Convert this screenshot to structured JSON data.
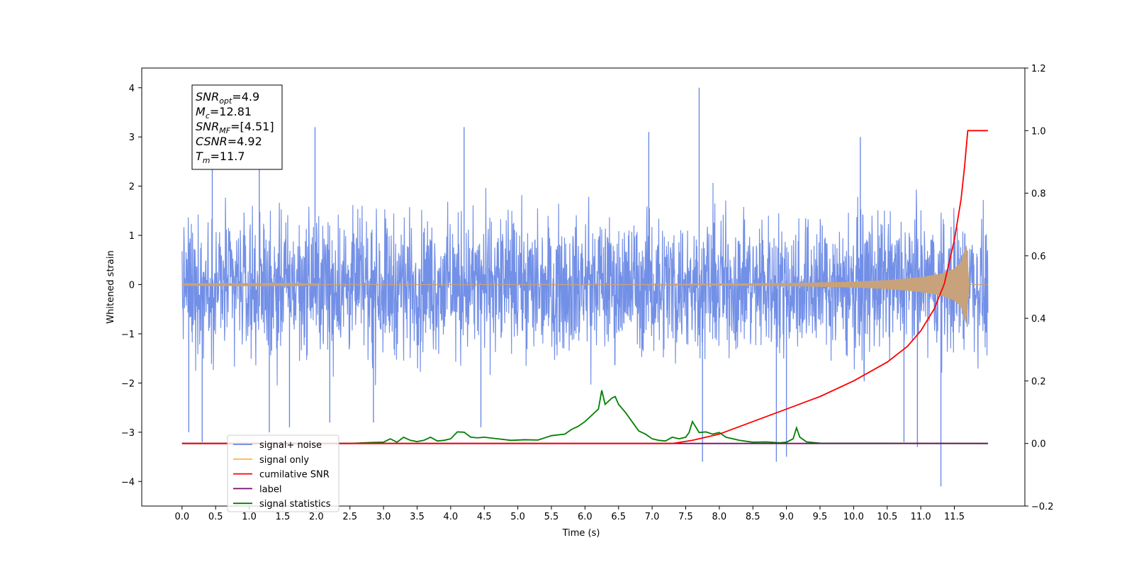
{
  "chart_data": {
    "type": "line",
    "xlabel": "Time (s)",
    "ylabel": "Whitened strain",
    "xlim": [
      -0.6,
      12.55
    ],
    "ylim": [
      -4.5,
      4.4
    ],
    "y2lim": [
      -0.2,
      1.2
    ],
    "xticks": [
      "0.0",
      "0.5",
      "1.0",
      "1.5",
      "2.0",
      "2.5",
      "3.0",
      "3.5",
      "4.0",
      "4.5",
      "5.0",
      "5.5",
      "6.0",
      "6.5",
      "7.0",
      "7.5",
      "8.0",
      "8.5",
      "9.0",
      "9.5",
      "10.0",
      "10.5",
      "11.0",
      "11.5"
    ],
    "yticks": [
      "4",
      "3",
      "2",
      "1",
      "0",
      "−1",
      "−2",
      "−3",
      "−4"
    ],
    "y2ticks": [
      "1.2",
      "1.0",
      "0.8",
      "0.6",
      "0.4",
      "0.2",
      "0.0",
      "−0.2"
    ],
    "annotation": {
      "lines": [
        {
          "base": "SNR",
          "sub": "opt",
          "rest": "=4.9"
        },
        {
          "base": "M",
          "sub": "c",
          "rest": "=12.81"
        },
        {
          "base": "SNR",
          "sub": "MF",
          "rest": "=[4.51]"
        },
        {
          "base": "CSNR",
          "sub": "",
          "rest": "=4.92"
        },
        {
          "base": "T",
          "sub": "m",
          "rest": "=11.7"
        }
      ]
    },
    "legend": {
      "position": "lower-left",
      "entries": [
        {
          "label": "signal+ noise",
          "color": "#6b8ae6"
        },
        {
          "label": "signal only",
          "color": "#ffb84d"
        },
        {
          "label": "cumilative SNR",
          "color": "#ff0000"
        },
        {
          "label": "label",
          "color": "#7a0a6e"
        },
        {
          "label": "signal statistics",
          "color": "#008000"
        }
      ]
    },
    "series": [
      {
        "name": "signal+ noise",
        "axis": "left",
        "color": "#6b8ae6",
        "x_range": [
          0.0,
          12.0
        ],
        "envelope": 1.6,
        "spikes": [
          {
            "x": 0.1,
            "y": -3.0
          },
          {
            "x": 0.3,
            "y": -3.2
          },
          {
            "x": 0.45,
            "y": 2.6
          },
          {
            "x": 1.15,
            "y": 2.8
          },
          {
            "x": 1.3,
            "y": -3.0
          },
          {
            "x": 1.6,
            "y": -2.9
          },
          {
            "x": 1.98,
            "y": 3.2
          },
          {
            "x": 2.2,
            "y": -2.8
          },
          {
            "x": 2.85,
            "y": -2.8
          },
          {
            "x": 4.2,
            "y": 3.2
          },
          {
            "x": 4.45,
            "y": -2.9
          },
          {
            "x": 6.95,
            "y": 3.1
          },
          {
            "x": 7.7,
            "y": 4.0
          },
          {
            "x": 7.75,
            "y": -3.6
          },
          {
            "x": 8.85,
            "y": -3.6
          },
          {
            "x": 9.0,
            "y": -3.5
          },
          {
            "x": 10.1,
            "y": 3.0
          },
          {
            "x": 10.75,
            "y": -3.2
          },
          {
            "x": 10.95,
            "y": -3.3
          },
          {
            "x": 11.3,
            "y": -4.1
          }
        ]
      },
      {
        "name": "signal only",
        "axis": "left",
        "color": "#c8a27a",
        "envelope_x": [
          0.0,
          7.0,
          8.0,
          9.0,
          10.0,
          10.5,
          11.0,
          11.3,
          11.5,
          11.6,
          11.68,
          11.72,
          11.8,
          12.0
        ],
        "envelope_y": [
          0.005,
          0.01,
          0.02,
          0.03,
          0.06,
          0.09,
          0.15,
          0.22,
          0.32,
          0.45,
          0.8,
          0.0,
          0.0,
          0.0
        ]
      },
      {
        "name": "cumilative SNR",
        "axis": "right",
        "color": "#ff0000",
        "x": [
          0.0,
          7.3,
          7.6,
          8.0,
          8.5,
          9.0,
          9.5,
          10.0,
          10.5,
          10.8,
          11.0,
          11.2,
          11.35,
          11.5,
          11.6,
          11.65,
          11.7,
          12.0
        ],
        "y": [
          0.0,
          0.0,
          0.01,
          0.03,
          0.07,
          0.11,
          0.15,
          0.2,
          0.26,
          0.31,
          0.36,
          0.43,
          0.51,
          0.65,
          0.78,
          0.88,
          1.0,
          1.0
        ]
      },
      {
        "name": "label",
        "axis": "right",
        "color": "#7a0a6e",
        "x": [
          0.0,
          12.0
        ],
        "y": [
          0.0,
          0.0
        ]
      },
      {
        "name": "signal statistics",
        "axis": "right",
        "color": "#008000",
        "x": [
          0.0,
          2.5,
          2.8,
          3.0,
          3.1,
          3.2,
          3.3,
          3.4,
          3.5,
          3.6,
          3.7,
          3.8,
          3.9,
          4.0,
          4.1,
          4.2,
          4.3,
          4.4,
          4.5,
          4.7,
          4.9,
          5.1,
          5.3,
          5.5,
          5.7,
          5.8,
          5.9,
          6.0,
          6.1,
          6.2,
          6.25,
          6.3,
          6.4,
          6.45,
          6.5,
          6.6,
          6.7,
          6.8,
          6.9,
          7.0,
          7.1,
          7.2,
          7.3,
          7.4,
          7.5,
          7.55,
          7.6,
          7.7,
          7.8,
          7.9,
          8.0,
          8.1,
          8.3,
          8.5,
          8.7,
          8.9,
          9.0,
          9.1,
          9.15,
          9.2,
          9.3,
          9.5,
          12.0
        ],
        "y": [
          0.0,
          0.0,
          0.003,
          0.004,
          0.015,
          0.004,
          0.02,
          0.01,
          0.006,
          0.01,
          0.02,
          0.008,
          0.01,
          0.015,
          0.037,
          0.036,
          0.02,
          0.018,
          0.02,
          0.015,
          0.01,
          0.012,
          0.011,
          0.025,
          0.03,
          0.045,
          0.055,
          0.07,
          0.09,
          0.11,
          0.17,
          0.125,
          0.145,
          0.15,
          0.125,
          0.1,
          0.07,
          0.04,
          0.03,
          0.015,
          0.01,
          0.008,
          0.02,
          0.015,
          0.02,
          0.035,
          0.07,
          0.035,
          0.037,
          0.03,
          0.035,
          0.02,
          0.01,
          0.004,
          0.005,
          0.002,
          0.004,
          0.015,
          0.05,
          0.02,
          0.005,
          0.001,
          0.0
        ]
      }
    ]
  }
}
